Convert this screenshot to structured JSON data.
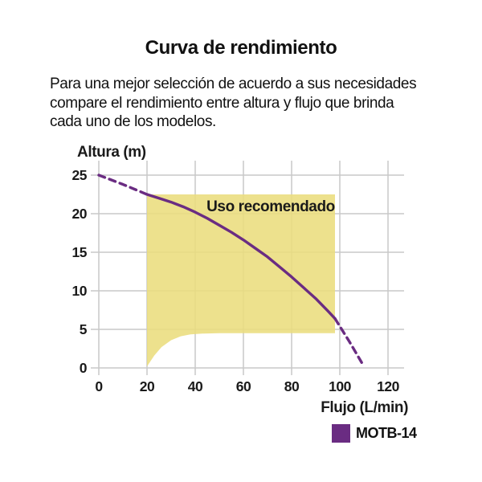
{
  "title": "Curva de rendimiento",
  "description_lines": [
    "Para una mejor selección de acuerdo a sus necesidades",
    "compare el rendimiento entre altura y flujo que brinda",
    "cada uno de los modelos."
  ],
  "chart_data": {
    "type": "line",
    "title": "Curva de rendimiento",
    "xlabel": "Flujo (L/min)",
    "ylabel": "Altura (m)",
    "x_ticks": [
      0,
      20,
      40,
      60,
      80,
      100,
      120
    ],
    "y_ticks": [
      0,
      5,
      10,
      15,
      20,
      25
    ],
    "xlim": [
      0,
      126
    ],
    "ylim": [
      0,
      27
    ],
    "grid": true,
    "grid_color": "#c9c9c9",
    "text_color": "#1a1a1a",
    "series": [
      {
        "name": "MOTB-14",
        "color": "#6a2c82",
        "segments": [
          {
            "style": "dashed",
            "points": [
              [
                0,
                25
              ],
              [
                10,
                23.8
              ],
              [
                20,
                22.5
              ]
            ]
          },
          {
            "style": "solid",
            "points": [
              [
                20,
                22.5
              ],
              [
                25,
                22
              ],
              [
                30,
                21.5
              ],
              [
                35,
                20.9
              ],
              [
                40,
                20.2
              ],
              [
                45,
                19.4
              ],
              [
                50,
                18.5
              ],
              [
                55,
                17.6
              ],
              [
                60,
                16.6
              ],
              [
                65,
                15.5
              ],
              [
                70,
                14.4
              ],
              [
                75,
                13.1
              ],
              [
                80,
                11.8
              ],
              [
                85,
                10.4
              ],
              [
                90,
                9
              ],
              [
                95,
                7.4
              ],
              [
                98,
                6.4
              ]
            ]
          },
          {
            "style": "dashed",
            "points": [
              [
                98,
                6.4
              ],
              [
                104,
                3.4
              ],
              [
                110,
                0.2
              ]
            ]
          }
        ]
      }
    ],
    "recommended_region": {
      "label": "Uso recomendado",
      "fill": "#eadc7c",
      "polygon": [
        [
          20,
          0.2
        ],
        [
          23,
          1.6
        ],
        [
          26,
          2.7
        ],
        [
          30,
          3.6
        ],
        [
          34,
          4.1
        ],
        [
          38,
          4.35
        ],
        [
          43,
          4.45
        ],
        [
          50,
          4.5
        ],
        [
          98,
          4.5
        ],
        [
          98,
          22.5
        ],
        [
          20,
          22.5
        ]
      ]
    }
  },
  "legend": {
    "swatch_color": "#6a2c82",
    "label": "MOTB-14"
  }
}
